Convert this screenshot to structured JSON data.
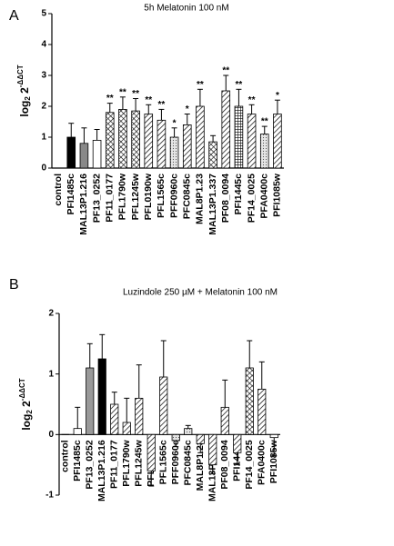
{
  "chart_data": [
    {
      "type": "bar",
      "panel": "A",
      "title": "5h Melatonin 100 nM",
      "ylabel": {
        "base": "log",
        "sub": "2",
        "main": " 2",
        "sup": "-ΔΔCT"
      },
      "categories": [
        "control",
        "PFI1485c",
        "MAL13P1.216",
        "PF13_0252",
        "PF11_0177",
        "PFL1790w",
        "PFL1245w",
        "PFL0190w",
        "PFL1565c",
        "PFF0960c",
        "PFC0845c",
        "MAL8P1.23",
        "MAL13P1.337",
        "PF08_0094",
        "PFI1445c",
        "PF14_0025",
        "PFA0400c",
        "PFI1085w"
      ],
      "values": [
        0,
        1.0,
        0.8,
        0.9,
        1.8,
        1.9,
        1.85,
        1.75,
        1.55,
        1.0,
        1.4,
        2.0,
        0.85,
        2.5,
        2.0,
        1.75,
        1.1,
        1.75
      ],
      "errors": [
        0,
        0.45,
        0.5,
        0.35,
        0.3,
        0.4,
        0.4,
        0.3,
        0.35,
        0.3,
        0.35,
        0.55,
        0.2,
        0.5,
        0.55,
        0.3,
        0.25,
        0.45
      ],
      "annotations": [
        null,
        null,
        null,
        null,
        "**",
        "**",
        "**",
        "**",
        "**",
        "*",
        "*",
        "**",
        null,
        "**",
        "**",
        "**",
        "**",
        "*"
      ],
      "patterns": [
        "solid",
        "solid",
        "solid",
        "solid",
        "cross",
        "cross",
        "cross",
        "hatch",
        "hatch",
        "dots",
        "hatch",
        "hatch",
        "cross",
        "hatch",
        "vline",
        "hatch",
        "dots",
        "hatch"
      ],
      "fills": [
        "#ffffff",
        "#000000",
        "#888888",
        "#ffffff",
        "#ffffff",
        "#ffffff",
        "#ffffff",
        "#ffffff",
        "#ffffff",
        "#e6e6e6",
        "#ffffff",
        "#ffffff",
        "#999999",
        "#ffffff",
        "#ffffff",
        "#ffffff",
        "#e6e6e6",
        "#ffffff"
      ],
      "ylim": [
        0,
        5
      ],
      "yticks": [
        0,
        1,
        2,
        3,
        4,
        5
      ]
    },
    {
      "type": "bar",
      "panel": "B",
      "title": "Luzindole 250 µM + Melatonin 100 nM",
      "ylabel": {
        "base": "log",
        "sub": "2",
        "main": " 2",
        "sup": "-ΔΔCT"
      },
      "categories": [
        "control",
        "PFI1485c",
        "PF13_0252",
        "MAL13P1.216",
        "PF11_0177",
        "PFL1790w",
        "PFL1245w",
        "PFL0190w",
        "PFL1565c",
        "PFF0960c",
        "PFC0845c",
        "MAL8P1.23",
        "MAL13P1.337",
        "PF08_0094",
        "PFI1445c",
        "PF14_0025",
        "PFA0400c",
        "PFI1085w"
      ],
      "values": [
        0,
        0.1,
        1.1,
        1.25,
        0.5,
        0.2,
        0.6,
        -0.6,
        0.95,
        -0.1,
        0.1,
        -0.15,
        -0.5,
        0.45,
        -0.3,
        1.1,
        0.75,
        -0.05
      ],
      "errors": [
        0,
        0.35,
        0.4,
        0.4,
        0.2,
        0.4,
        0.55,
        0.25,
        0.6,
        0.1,
        0.05,
        0.15,
        0.15,
        0.45,
        0.2,
        0.45,
        0.45,
        0.3
      ],
      "patterns": [
        "solid",
        "solid",
        "solid",
        "solid",
        "hatch",
        "hatch",
        "hatch",
        "hatch",
        "hatch",
        "dots",
        "dots",
        "hatch",
        "hatch",
        "hatch",
        "hatch",
        "cross",
        "hatch",
        "solid"
      ],
      "fills": [
        "#ffffff",
        "#ffffff",
        "#999999",
        "#000000",
        "#ffffff",
        "#ffffff",
        "#ffffff",
        "#ffffff",
        "#ffffff",
        "#e6e6e6",
        "#e6e6e6",
        "#ffffff",
        "#ffffff",
        "#ffffff",
        "#ffffff",
        "#ffffff",
        "#ffffff",
        "#ffffff"
      ],
      "ylim": [
        -1,
        2
      ],
      "yticks": [
        -1,
        0,
        1,
        2
      ]
    }
  ]
}
